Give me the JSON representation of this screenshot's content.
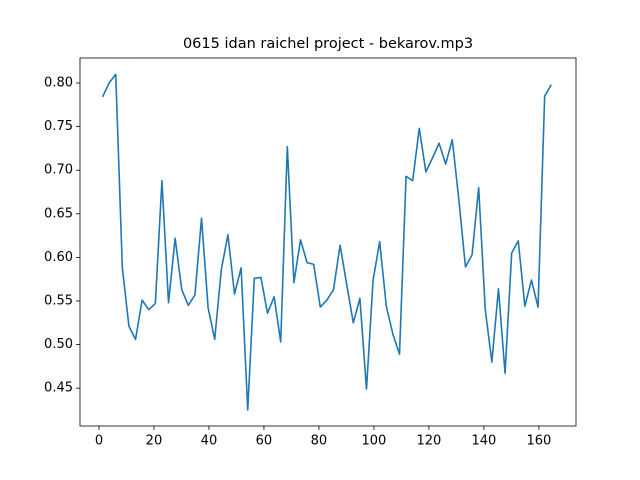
{
  "chart_data": {
    "type": "line",
    "title": "0615 idan raichel project - bekarov.mp3",
    "x": [
      1.3,
      3.7,
      6.1,
      8.5,
      10.9,
      13.3,
      15.7,
      18.1,
      20.5,
      22.9,
      25.3,
      27.7,
      30.1,
      32.5,
      34.9,
      37.3,
      39.7,
      42.1,
      44.5,
      46.9,
      49.3,
      51.7,
      54.1,
      56.5,
      58.9,
      61.3,
      63.7,
      66.1,
      68.5,
      70.9,
      73.3,
      75.7,
      78.1,
      80.5,
      82.9,
      85.3,
      87.7,
      90.1,
      92.5,
      94.9,
      97.3,
      99.7,
      102.1,
      104.5,
      106.9,
      109.3,
      111.7,
      114.1,
      116.5,
      118.9,
      121.3,
      123.7,
      126.1,
      128.5,
      130.9,
      133.3,
      135.7,
      138.1,
      140.5,
      142.9,
      145.3,
      147.7,
      150.1,
      152.5,
      154.9,
      157.3,
      159.7,
      162.1,
      164.5
    ],
    "values": [
      0.784,
      0.8,
      0.81,
      0.588,
      0.521,
      0.506,
      0.551,
      0.54,
      0.547,
      0.688,
      0.548,
      0.622,
      0.563,
      0.545,
      0.557,
      0.645,
      0.542,
      0.506,
      0.586,
      0.626,
      0.558,
      0.588,
      0.425,
      0.576,
      0.577,
      0.536,
      0.555,
      0.503,
      0.727,
      0.571,
      0.62,
      0.594,
      0.592,
      0.543,
      0.551,
      0.563,
      0.614,
      0.569,
      0.525,
      0.553,
      0.449,
      0.574,
      0.618,
      0.544,
      0.512,
      0.489,
      0.693,
      0.688,
      0.748,
      0.698,
      0.714,
      0.731,
      0.707,
      0.735,
      0.666,
      0.589,
      0.603,
      0.68,
      0.54,
      0.48,
      0.564,
      0.467,
      0.605,
      0.619,
      0.544,
      0.574,
      0.543,
      0.785,
      0.798
    ],
    "color": "#1f77b4",
    "xlim": [
      -6.9,
      173.5
    ],
    "xticks": [
      0,
      20,
      40,
      60,
      80,
      100,
      120,
      140,
      160
    ],
    "ylim": [
      0.4066,
      0.8287
    ],
    "yticks": [
      0.45,
      {
        "value": 0.5,
        "label": "0.50"
      },
      0.55,
      {
        "value": 0.6,
        "label": "0.60"
      },
      0.65,
      {
        "value": 0.7,
        "label": "0.70"
      },
      0.75,
      {
        "value": 0.8,
        "label": "0.80"
      }
    ]
  }
}
